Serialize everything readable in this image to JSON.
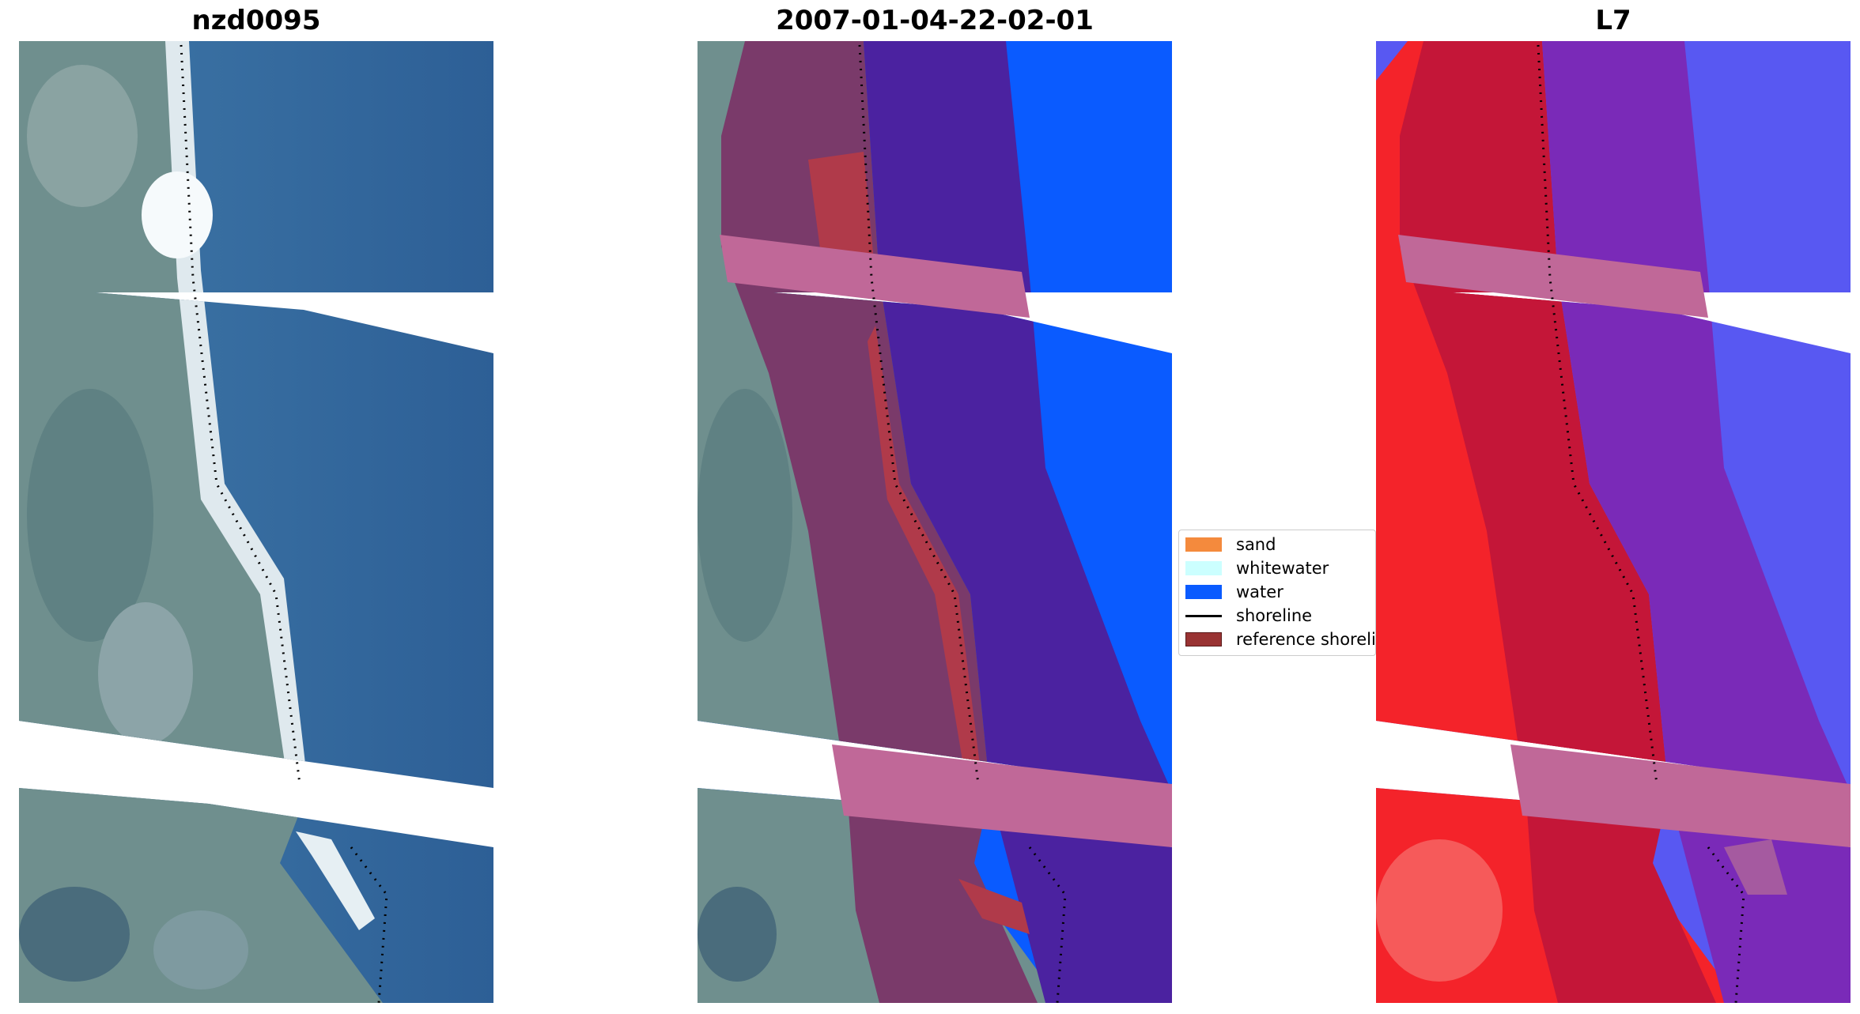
{
  "panels": [
    {
      "title": "nzd0095",
      "style": "rgb-image"
    },
    {
      "title": "2007-01-04-22-02-01",
      "style": "classified-overlay"
    },
    {
      "title": "L7",
      "style": "index-map"
    }
  ],
  "legend": {
    "items": [
      {
        "label": "sand",
        "color": "#f48a3d",
        "type": "patch"
      },
      {
        "label": "whitewater",
        "color": "#ccffff",
        "type": "patch"
      },
      {
        "label": "water",
        "color": "#0a5bff",
        "type": "patch"
      },
      {
        "label": "shoreline",
        "color": "#000000",
        "type": "line"
      },
      {
        "label": "reference shoreline",
        "color": "#993333",
        "type": "patch"
      }
    ]
  }
}
